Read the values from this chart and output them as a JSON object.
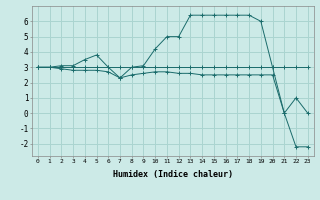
{
  "title": "",
  "xlabel": "Humidex (Indice chaleur)",
  "bg_color": "#cceae7",
  "grid_color": "#aad4d0",
  "line_color": "#1a6b6b",
  "x_ticks": [
    0,
    1,
    2,
    3,
    4,
    5,
    6,
    7,
    8,
    9,
    10,
    11,
    12,
    13,
    14,
    15,
    16,
    17,
    18,
    19,
    20,
    21,
    22,
    23
  ],
  "ylim": [
    -2.8,
    7.0
  ],
  "xlim": [
    -0.5,
    23.5
  ],
  "yticks": [
    -2,
    -1,
    0,
    1,
    2,
    3,
    4,
    5,
    6
  ],
  "line1_x": [
    0,
    1,
    2,
    3,
    4,
    5,
    6,
    7,
    8,
    9,
    10,
    11,
    12,
    13,
    14,
    15,
    16,
    17,
    18,
    19,
    20,
    21,
    22,
    23
  ],
  "line1_y": [
    3.0,
    3.0,
    3.0,
    3.0,
    3.0,
    3.0,
    3.0,
    3.0,
    3.0,
    3.0,
    3.0,
    3.0,
    3.0,
    3.0,
    3.0,
    3.0,
    3.0,
    3.0,
    3.0,
    3.0,
    3.0,
    3.0,
    3.0,
    3.0
  ],
  "line2_x": [
    0,
    1,
    2,
    3,
    4,
    5,
    6,
    7,
    8,
    9,
    10,
    11,
    12,
    13,
    14,
    15,
    16,
    17,
    18,
    19,
    20,
    21,
    22,
    23
  ],
  "line2_y": [
    3.0,
    3.0,
    3.1,
    3.1,
    3.5,
    3.8,
    3.0,
    2.3,
    3.0,
    3.1,
    4.2,
    5.0,
    5.0,
    6.4,
    6.4,
    6.4,
    6.4,
    6.4,
    6.4,
    6.0,
    3.0,
    0.0,
    1.0,
    0.0
  ],
  "line3_x": [
    0,
    1,
    2,
    3,
    4,
    5,
    6,
    7,
    8,
    9,
    10,
    11,
    12,
    13,
    14,
    15,
    16,
    17,
    18,
    19,
    20,
    21,
    22,
    23
  ],
  "line3_y": [
    3.0,
    3.0,
    2.9,
    2.8,
    2.8,
    2.8,
    2.7,
    2.3,
    2.5,
    2.6,
    2.7,
    2.7,
    2.6,
    2.6,
    2.5,
    2.5,
    2.5,
    2.5,
    2.5,
    2.5,
    2.5,
    0.0,
    -2.2,
    -2.2
  ]
}
